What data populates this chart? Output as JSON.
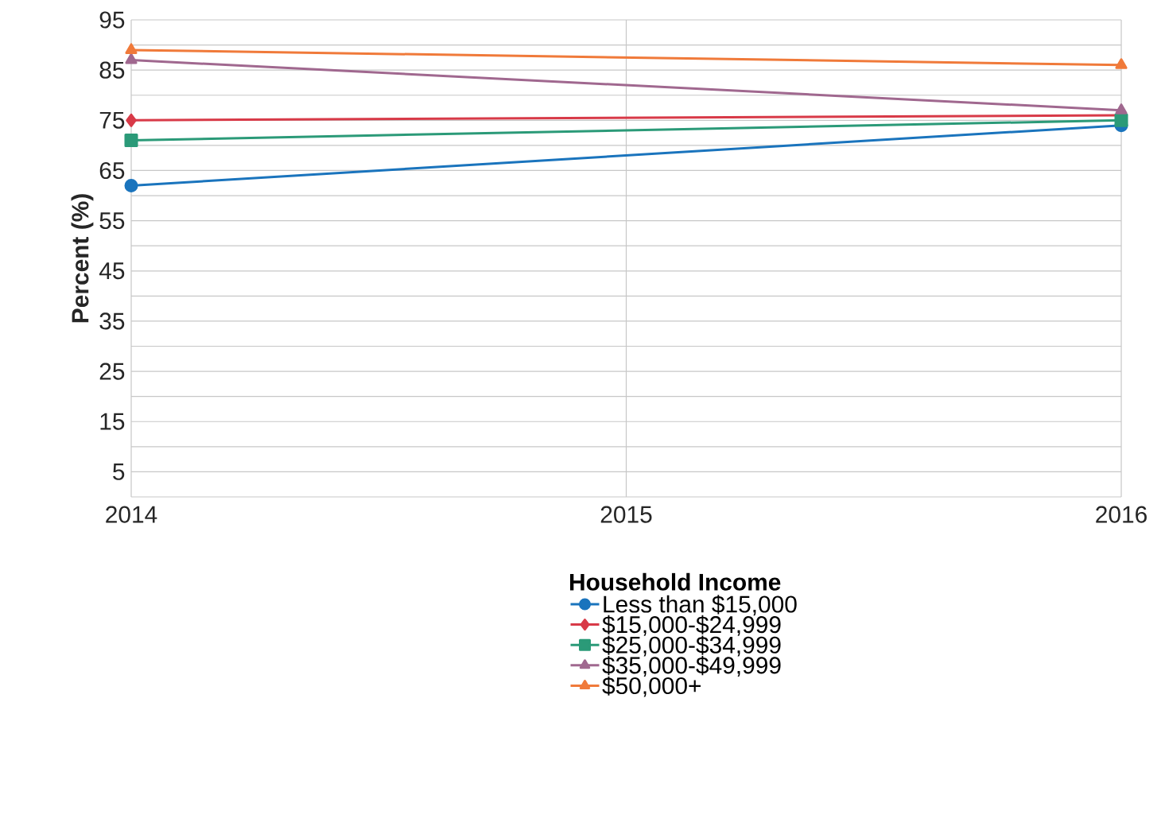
{
  "chart_data": {
    "type": "line",
    "xlabel": null,
    "ylabel": "Percent (%)",
    "legend_title": "Household Income",
    "x": [
      2014,
      2016
    ],
    "series": [
      {
        "name": "Less than $15,000",
        "color": "#1a74bd",
        "marker": "circle",
        "values": [
          62,
          74
        ]
      },
      {
        "name": "$15,000-$24,999",
        "color": "#d83a48",
        "marker": "diamond",
        "values": [
          75,
          76
        ]
      },
      {
        "name": "$25,000-$34,999",
        "color": "#2b9a78",
        "marker": "square",
        "values": [
          71,
          75
        ]
      },
      {
        "name": "$35,000-$49,999",
        "color": "#a0688f",
        "marker": "triangle",
        "values": [
          87,
          77
        ]
      },
      {
        "name": "$50,000+",
        "color": "#f07a3a",
        "marker": "triangle",
        "values": [
          89,
          86
        ]
      }
    ],
    "xlim": [
      2014,
      2016
    ],
    "xticks": [
      2014,
      2015,
      2016
    ],
    "ylim": [
      0,
      95
    ],
    "yticks": [
      {
        "value": 0,
        "label": null
      },
      5,
      {
        "value": 10,
        "label": null
      },
      15,
      {
        "value": 20,
        "label": null
      },
      25,
      {
        "value": 30,
        "label": null
      },
      35,
      {
        "value": 40,
        "label": null
      },
      45,
      {
        "value": 50,
        "label": null
      },
      55,
      {
        "value": 60,
        "label": null
      },
      65,
      {
        "value": 70,
        "label": null
      },
      75,
      {
        "value": 80,
        "label": null
      },
      85,
      {
        "value": 90,
        "label": null
      },
      95
    ],
    "grid": true,
    "legend": "bottom",
    "line_style": "solid"
  }
}
